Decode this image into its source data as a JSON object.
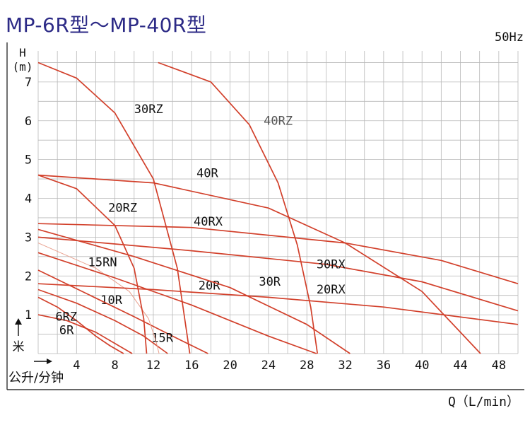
{
  "title": "MP-6R型～MP-40R型",
  "chart_data": {
    "type": "line",
    "frequency_label": "50Hz",
    "ylabel_lines": [
      "H",
      "(m)"
    ],
    "ylabel_extra": "米",
    "xlabel": "Q（L/min）",
    "xlabel_extra": "公升/分钟",
    "xlim": [
      0,
      50
    ],
    "ylim": [
      0,
      7.8
    ],
    "x_ticks": [
      4,
      8,
      12,
      16,
      20,
      24,
      28,
      32,
      36,
      40,
      44,
      48
    ],
    "y_ticks": [
      1,
      2,
      3,
      4,
      5,
      6,
      7
    ],
    "grid": true,
    "line_color": "#d2402b",
    "series": [
      {
        "name": "6R",
        "x": [
          0,
          3,
          6,
          9.8
        ],
        "y": [
          1.0,
          0.85,
          0.55,
          0.0
        ]
      },
      {
        "name": "6RZ",
        "x": [
          0,
          2,
          4,
          6,
          7.5,
          8.9
        ],
        "y": [
          1.45,
          1.2,
          0.85,
          0.45,
          0.2,
          0.0
        ]
      },
      {
        "name": "10R",
        "x": [
          0,
          4,
          8,
          11,
          13.5
        ],
        "y": [
          1.65,
          1.3,
          0.85,
          0.45,
          0.0
        ]
      },
      {
        "name": "15R",
        "x": [
          0,
          5,
          10,
          14,
          17.7
        ],
        "y": [
          2.15,
          1.55,
          0.95,
          0.45,
          0.0
        ]
      },
      {
        "name": "15RN",
        "x": [
          0,
          6,
          9.5,
          11.5,
          12.3,
          12.6
        ],
        "y": [
          2.85,
          2.2,
          1.6,
          0.9,
          0.3,
          0.0
        ]
      },
      {
        "name": "20R",
        "x": [
          0,
          8,
          16,
          24,
          29
        ],
        "y": [
          2.6,
          1.95,
          1.25,
          0.45,
          0.0
        ]
      },
      {
        "name": "20RZ",
        "x": [
          0,
          4,
          8,
          10,
          11,
          11.3
        ],
        "y": [
          4.6,
          4.25,
          3.3,
          2.2,
          0.9,
          0.0
        ]
      },
      {
        "name": "20RX",
        "x": [
          0,
          12,
          24,
          36,
          50
        ],
        "y": [
          1.8,
          1.65,
          1.45,
          1.2,
          0.75
        ]
      },
      {
        "name": "30R",
        "x": [
          0,
          10,
          20,
          28,
          32.5
        ],
        "y": [
          3.2,
          2.5,
          1.7,
          0.75,
          0.0
        ]
      },
      {
        "name": "30RX",
        "x": [
          0,
          16,
          30,
          40,
          50
        ],
        "y": [
          3.0,
          2.65,
          2.3,
          1.85,
          1.1
        ]
      },
      {
        "name": "30RZ",
        "x": [
          0,
          4,
          8,
          12,
          14.5,
          15.8
        ],
        "y": [
          7.5,
          7.1,
          6.2,
          4.5,
          2.2,
          0.0
        ]
      },
      {
        "name": "40R",
        "x": [
          0,
          12,
          24,
          32,
          40,
          46.1
        ],
        "y": [
          4.6,
          4.4,
          3.75,
          2.85,
          1.6,
          0.0
        ]
      },
      {
        "name": "40RX",
        "x": [
          0,
          16,
          32,
          42,
          50
        ],
        "y": [
          3.35,
          3.25,
          2.85,
          2.4,
          1.8
        ]
      },
      {
        "name": "40RZ",
        "x": [
          12.5,
          18,
          22,
          25,
          27,
          28.4,
          29.1
        ],
        "y": [
          7.5,
          7.0,
          5.9,
          4.4,
          2.8,
          1.2,
          0.0
        ]
      }
    ]
  }
}
